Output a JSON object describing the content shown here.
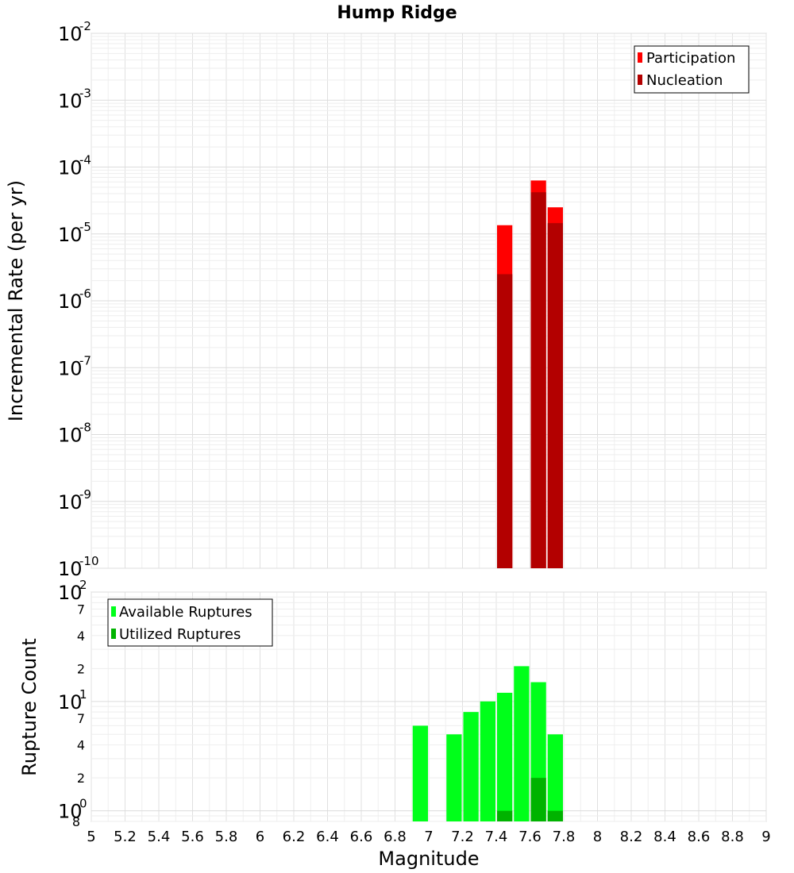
{
  "chart_data": [
    {
      "type": "bar",
      "title": "Hump Ridge",
      "ylabel": "Incremental Rate (per yr)",
      "yscale": "log",
      "ylim": [
        1e-10,
        0.01
      ],
      "xlim": [
        5,
        9
      ],
      "grid": true,
      "legend_position": "top-right",
      "y_ticks": [
        {
          "base": "10",
          "exp": "-10",
          "value": 1e-10
        },
        {
          "base": "10",
          "exp": "-9",
          "value": 1e-09
        },
        {
          "base": "10",
          "exp": "-8",
          "value": 1e-08
        },
        {
          "base": "10",
          "exp": "-7",
          "value": 1e-07
        },
        {
          "base": "10",
          "exp": "-6",
          "value": 1e-06
        },
        {
          "base": "10",
          "exp": "-5",
          "value": 1e-05
        },
        {
          "base": "10",
          "exp": "-4",
          "value": 0.0001
        },
        {
          "base": "10",
          "exp": "-3",
          "value": 0.001
        },
        {
          "base": "10",
          "exp": "-2",
          "value": 0.01
        }
      ],
      "series": [
        {
          "name": "Participation",
          "color": "#ff0000",
          "points": [
            {
              "x": 7.45,
              "y": 1.35e-05
            },
            {
              "x": 7.65,
              "y": 6.3e-05
            },
            {
              "x": 7.75,
              "y": 2.5e-05
            }
          ]
        },
        {
          "name": "Nucleation",
          "color": "#b30000",
          "points": [
            {
              "x": 7.45,
              "y": 2.5e-06
            },
            {
              "x": 7.65,
              "y": 4.2e-05
            },
            {
              "x": 7.75,
              "y": 1.45e-05
            }
          ]
        }
      ]
    },
    {
      "type": "bar",
      "ylabel": "Rupture Count",
      "xlabel": "Magnitude",
      "yscale": "log",
      "ylim": [
        0.8,
        100
      ],
      "xlim": [
        5,
        9
      ],
      "grid": true,
      "legend_position": "top-left",
      "y_ticks": [
        {
          "base": "10",
          "exp": "0",
          "value": 1,
          "small": "8",
          "small_value": 0.8
        },
        {
          "label": "2",
          "value": 2
        },
        {
          "label": "4",
          "value": 4
        },
        {
          "label": "7",
          "value": 7
        },
        {
          "base": "10",
          "exp": "1",
          "value": 10
        },
        {
          "label": "2",
          "value": 20
        },
        {
          "label": "4",
          "value": 40
        },
        {
          "label": "7",
          "value": 70
        },
        {
          "base": "10",
          "exp": "2",
          "value": 100
        }
      ],
      "x_ticks": [
        "5",
        "5.2",
        "5.4",
        "5.6",
        "5.8",
        "6",
        "6.2",
        "6.4",
        "6.6",
        "6.8",
        "7",
        "7.2",
        "7.4",
        "7.6",
        "7.8",
        "8",
        "8.2",
        "8.4",
        "8.6",
        "8.8",
        "9"
      ],
      "series": [
        {
          "name": "Available Ruptures",
          "color": "#00ff1a",
          "points": [
            {
              "x": 6.95,
              "y": 6
            },
            {
              "x": 7.15,
              "y": 5
            },
            {
              "x": 7.25,
              "y": 8
            },
            {
              "x": 7.35,
              "y": 10
            },
            {
              "x": 7.45,
              "y": 12
            },
            {
              "x": 7.55,
              "y": 21
            },
            {
              "x": 7.65,
              "y": 15
            },
            {
              "x": 7.75,
              "y": 5
            }
          ]
        },
        {
          "name": "Utilized Ruptures",
          "color": "#00b300",
          "points": [
            {
              "x": 7.45,
              "y": 1
            },
            {
              "x": 7.65,
              "y": 2
            },
            {
              "x": 7.75,
              "y": 1
            }
          ]
        }
      ]
    }
  ]
}
